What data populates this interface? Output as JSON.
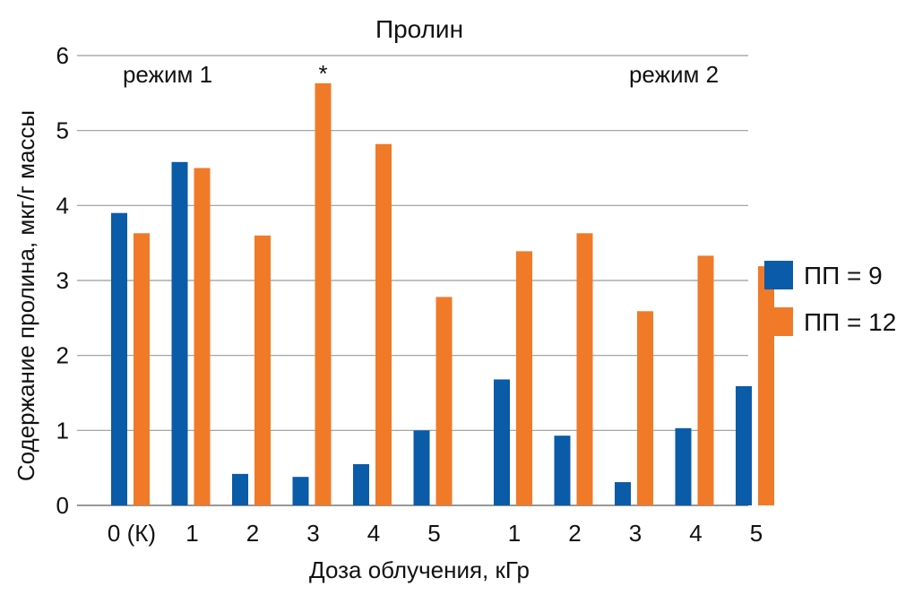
{
  "chart_data": {
    "type": "bar",
    "title": "Пролин",
    "xlabel": "Доза облучения, кГр",
    "ylabel": "Содержание пролина, мкг/г массы",
    "ylim": [
      0,
      6
    ],
    "yticks": [
      "0",
      "1",
      "2",
      "3",
      "4",
      "5",
      "6"
    ],
    "categories": [
      "0 (К)",
      "1",
      "2",
      "3",
      "4",
      "5",
      "1",
      "2",
      "3",
      "4",
      "5"
    ],
    "groups": [
      {
        "label": "режим 1",
        "categories": [
          "0 (К)",
          "1",
          "2",
          "3",
          "4",
          "5"
        ]
      },
      {
        "label": "режим 2",
        "categories": [
          "1",
          "2",
          "3",
          "4",
          "5"
        ]
      }
    ],
    "series": [
      {
        "name": "ПП = 9",
        "color": "#0a5ba8",
        "values": [
          3.9,
          4.58,
          0.42,
          0.38,
          0.55,
          1.0,
          1.68,
          0.93,
          0.31,
          1.03,
          1.59
        ]
      },
      {
        "name": "ПП = 12",
        "color": "#f07a28",
        "values": [
          3.63,
          4.5,
          3.6,
          5.63,
          4.82,
          2.78,
          3.39,
          3.63,
          2.59,
          3.33,
          3.19
        ]
      }
    ],
    "annotations": [
      {
        "text": "*",
        "category_index": 3,
        "series": "ПП = 12"
      }
    ],
    "grid": true,
    "legend_position": "right"
  }
}
